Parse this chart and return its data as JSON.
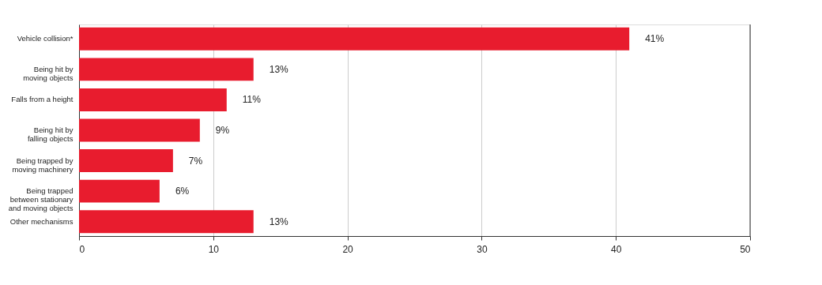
{
  "chart_data": {
    "type": "bar",
    "orientation": "horizontal",
    "categories": [
      "Vehicle collision*",
      "Being hit by\nmoving objects",
      "Falls from a height",
      "Being hit by\nfalling objects",
      "Being trapped by\nmoving machinery",
      "Being trapped\nbetween stationary\nand moving objects",
      "Other mechanisms"
    ],
    "values": [
      41,
      13,
      11,
      9,
      7,
      6,
      13
    ],
    "value_labels": [
      "41%",
      "13%",
      "11%",
      "9%",
      "7%",
      "6%",
      "13%"
    ],
    "color": "#e81c2e",
    "xlim": [
      0,
      50
    ],
    "xticks": [
      0,
      10,
      20,
      30,
      40,
      50
    ],
    "grid": "x"
  }
}
